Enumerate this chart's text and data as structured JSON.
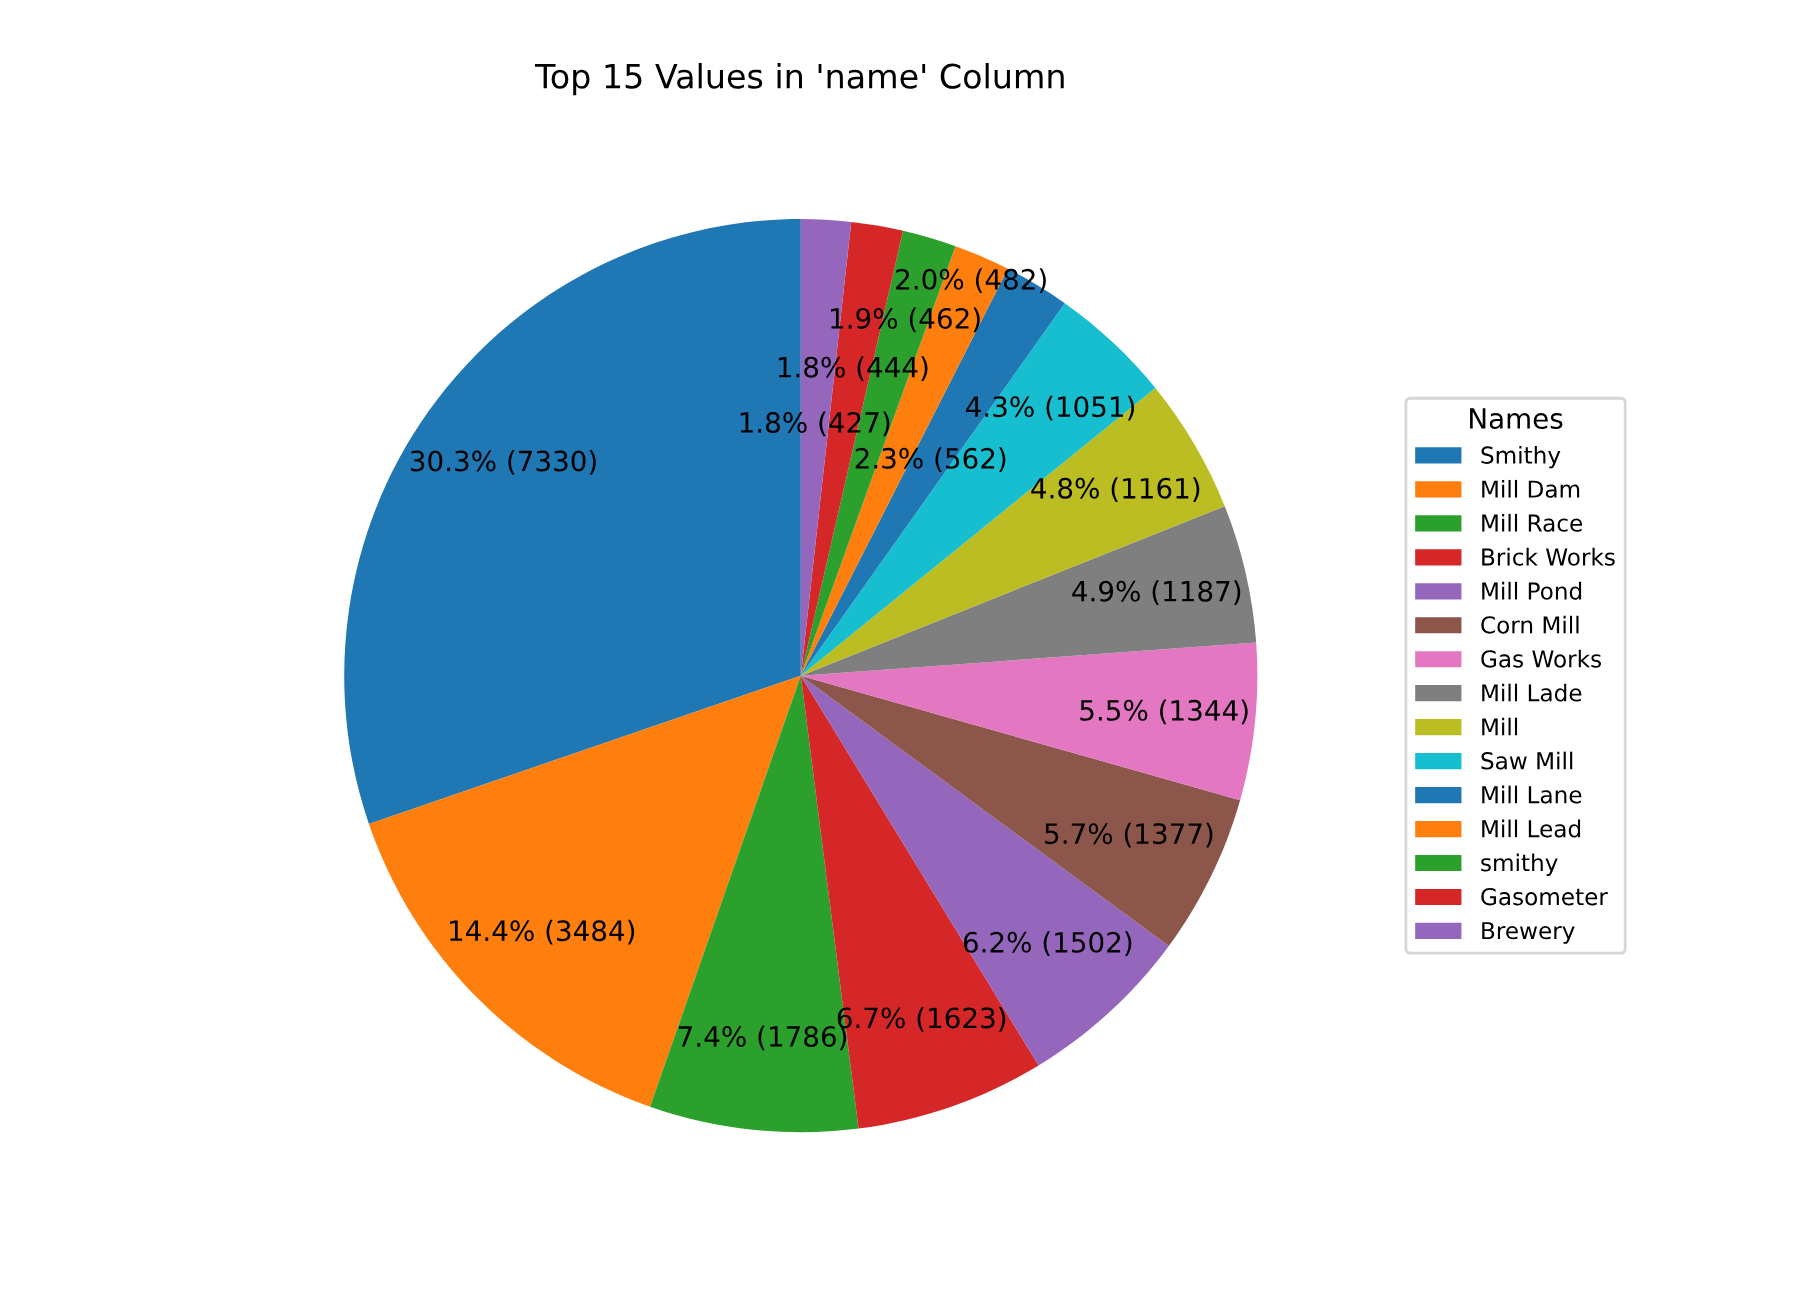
{
  "chart_data": {
    "type": "pie",
    "title": "Top 15 Values in 'name' Column",
    "legend_title": "Names",
    "legend": "right",
    "categories": [
      "Smithy",
      "Mill Dam",
      "Mill Race",
      "Brick Works",
      "Mill Pond",
      "Corn Mill",
      "Gas Works",
      "Mill Lade",
      "Mill",
      "Saw Mill",
      "Mill Lane",
      "Mill Lead",
      "smithy",
      "Gasometer",
      "Brewery"
    ],
    "values": [
      7330,
      3484,
      1786,
      1623,
      1502,
      1377,
      1344,
      1187,
      1161,
      1051,
      562,
      482,
      462,
      444,
      427
    ],
    "colors": [
      "#1f77b4",
      "#ff7f0e",
      "#2ca02c",
      "#d62728",
      "#9467bd",
      "#8c564b",
      "#e377c2",
      "#7f7f7f",
      "#bcbd22",
      "#17becf",
      "#1f77b4",
      "#ff7f0e",
      "#2ca02c",
      "#d62728",
      "#9467bd"
    ],
    "value_labels": [
      "30.3% (7330)",
      "14.4% (3484)",
      "7.4% (1786)",
      "6.7% (1623)",
      "6.2% (1502)",
      "5.7% (1377)",
      "5.5% (1344)",
      "4.9% (1187)",
      "4.8% (1161)",
      "4.3% (1051)",
      "2.3% (562)",
      "2.0% (482)",
      "1.9% (462)",
      "1.8% (444)",
      "1.8% (427)"
    ]
  }
}
